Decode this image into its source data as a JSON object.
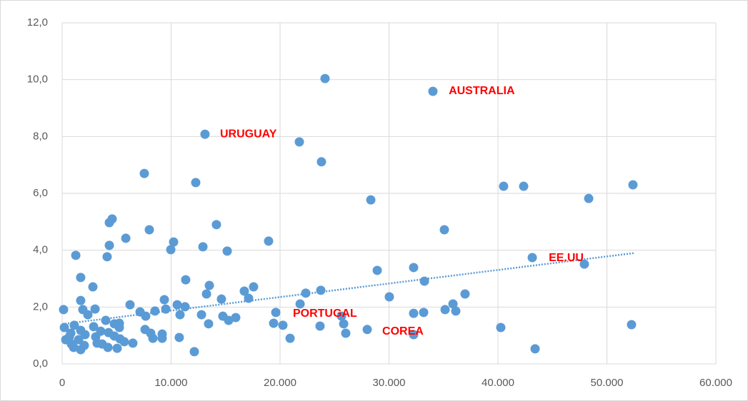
{
  "chart_data": {
    "type": "scatter",
    "x": [
      24130,
      34030,
      13110,
      21770,
      23800,
      7540,
      12260,
      28330,
      40520,
      42360,
      48330,
      52390,
      4590,
      4330,
      14160,
      8000,
      35080,
      5840,
      10230,
      18950,
      4330,
      12920,
      9970,
      15150,
      1250,
      4130,
      43150,
      47930,
      32260,
      28920,
      1700,
      11340,
      33250,
      2820,
      13510,
      17570,
      16720,
      23740,
      13250,
      22360,
      36980,
      30030,
      17110,
      14620,
      9380,
      1700,
      6230,
      10560,
      21840,
      11280,
      35870,
      130,
      1900,
      3020,
      9510,
      8520,
      35150,
      36130,
      33180,
      32260,
      19610,
      7150,
      2360,
      10820,
      12790,
      14750,
      15930,
      25640,
      7670,
      4000,
      15280,
      13440,
      19410,
      20260,
      23670,
      25840,
      5250,
      4790,
      40260,
      52260,
      200,
      1110,
      2890,
      5250,
      28000,
      7610,
      1700,
      3540,
      4260,
      790,
      8130,
      26030,
      9180,
      2100,
      32260,
      4790,
      660,
      3080,
      10750,
      20920,
      8330,
      9180,
      5310,
      1510,
      330,
      5700,
      6490,
      3210,
      3670,
      850,
      2030,
      4200,
      1050,
      5050,
      1700,
      43410,
      12130
    ],
    "values": [
      10.04,
      9.59,
      8.08,
      7.81,
      7.11,
      6.7,
      6.38,
      5.77,
      6.25,
      6.25,
      5.82,
      6.3,
      5.1,
      4.97,
      4.9,
      4.72,
      4.72,
      4.42,
      4.29,
      4.32,
      4.17,
      4.12,
      4.02,
      3.97,
      3.82,
      3.77,
      3.74,
      3.51,
      3.39,
      3.29,
      3.04,
      2.96,
      2.91,
      2.71,
      2.76,
      2.71,
      2.56,
      2.59,
      2.46,
      2.49,
      2.46,
      2.36,
      2.31,
      2.28,
      2.26,
      2.23,
      2.08,
      2.08,
      2.11,
      2.01,
      2.11,
      1.91,
      1.91,
      1.93,
      1.93,
      1.86,
      1.91,
      1.86,
      1.81,
      1.78,
      1.81,
      1.83,
      1.73,
      1.73,
      1.73,
      1.68,
      1.63,
      1.68,
      1.68,
      1.53,
      1.53,
      1.41,
      1.43,
      1.36,
      1.33,
      1.41,
      1.43,
      1.41,
      1.28,
      1.38,
      1.28,
      1.36,
      1.31,
      1.28,
      1.21,
      1.21,
      1.18,
      1.15,
      1.1,
      1.08,
      1.08,
      1.08,
      1.05,
      1.03,
      1.03,
      0.98,
      0.95,
      0.95,
      0.93,
      0.9,
      0.9,
      0.9,
      0.88,
      0.85,
      0.85,
      0.78,
      0.73,
      0.73,
      0.7,
      0.7,
      0.65,
      0.58,
      0.58,
      0.55,
      0.5,
      0.53,
      0.43
    ],
    "color": "#5b9bd5",
    "trendline": {
      "x": [
        0,
        52500
      ],
      "values": [
        1.4,
        3.9
      ],
      "color": "#5b9bd5"
    },
    "xlim": [
      0,
      60000
    ],
    "xticks": [
      {
        "value": 0,
        "label": "0"
      },
      {
        "value": 10000,
        "label": "10.000"
      },
      {
        "value": 20000,
        "label": "20.000"
      },
      {
        "value": 30000,
        "label": "30.000"
      },
      {
        "value": 40000,
        "label": "40.000"
      },
      {
        "value": 50000,
        "label": "50.000"
      },
      {
        "value": 60000,
        "label": "60.000"
      }
    ],
    "ylim": [
      0,
      12
    ],
    "yticks": [
      {
        "value": 0,
        "label": "0,0"
      },
      {
        "value": 2,
        "label": "2,0"
      },
      {
        "value": 4,
        "label": "4,0"
      },
      {
        "value": 6,
        "label": "6,0"
      },
      {
        "value": 8,
        "label": "8,0"
      },
      {
        "value": 10,
        "label": "10,0"
      },
      {
        "value": 12,
        "label": "12,0"
      }
    ],
    "grid": true,
    "annotations": [
      {
        "text": "AUSTRALIA",
        "x": 35480,
        "y": 9.59
      },
      {
        "text": "URUGUAY",
        "x": 14490,
        "y": 8.08
      },
      {
        "text": "EE.UU",
        "x": 44660,
        "y": 3.72
      },
      {
        "text": "PORTUGAL",
        "x": 21180,
        "y": 1.76
      },
      {
        "text": "COREA",
        "x": 29380,
        "y": 1.13
      }
    ]
  }
}
